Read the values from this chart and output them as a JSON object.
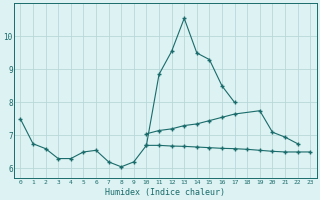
{
  "xlabel": "Humidex (Indice chaleur)",
  "x": [
    0,
    1,
    2,
    3,
    4,
    5,
    6,
    7,
    8,
    9,
    10,
    11,
    12,
    13,
    14,
    15,
    16,
    17,
    18,
    19,
    20,
    21,
    22,
    23
  ],
  "line1": [
    7.5,
    6.75,
    6.6,
    6.3,
    6.3,
    6.5,
    6.55,
    6.2,
    6.05,
    6.2,
    6.7,
    8.85,
    9.55,
    10.55,
    9.5,
    9.3,
    8.5,
    8.0,
    null,
    null,
    null,
    null,
    null,
    null
  ],
  "line2": [
    null,
    null,
    null,
    null,
    null,
    null,
    null,
    null,
    null,
    null,
    7.05,
    7.15,
    7.2,
    7.3,
    7.35,
    7.45,
    7.55,
    7.65,
    null,
    7.75,
    7.1,
    6.95,
    6.75,
    null
  ],
  "line3": [
    null,
    null,
    null,
    null,
    null,
    null,
    null,
    null,
    null,
    null,
    6.7,
    6.7,
    6.68,
    6.67,
    6.65,
    6.63,
    6.61,
    6.6,
    6.58,
    6.55,
    6.52,
    6.5,
    6.5,
    6.5
  ],
  "bg_color": "#ddf2f2",
  "grid_color": "#b8d8d8",
  "line_color": "#1a6b6b",
  "ylim": [
    5.7,
    11.0
  ],
  "xlim": [
    -0.5,
    23.5
  ],
  "yticks": [
    6,
    7,
    8,
    9,
    10
  ],
  "xticks": [
    0,
    1,
    2,
    3,
    4,
    5,
    6,
    7,
    8,
    9,
    10,
    11,
    12,
    13,
    14,
    15,
    16,
    17,
    18,
    19,
    20,
    21,
    22,
    23
  ]
}
